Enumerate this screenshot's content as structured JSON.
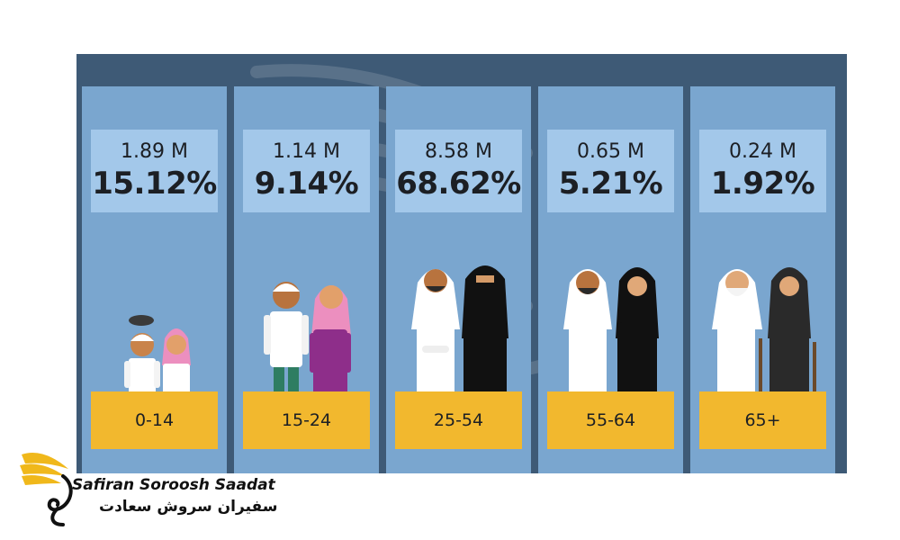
{
  "chart_data": {
    "type": "table",
    "title": "",
    "categories": [
      "0-14",
      "15-24",
      "25-54",
      "55-64",
      "65+"
    ],
    "series": [
      {
        "name": "",
        "unit": "M",
        "values": [
          "1.89 M",
          "1.14 M",
          "8.58 M",
          "0.65 M",
          "0.24 M"
        ]
      },
      {
        "name": "",
        "unit": "%",
        "values": [
          "15.12%",
          "9.14%",
          "68.62%",
          "5.21%",
          "1.92%"
        ]
      }
    ]
  },
  "colors": {
    "panel_bg": "#3e5a76",
    "column_bg": "#7aa6cf",
    "value_box_bg": "#a3c8ea",
    "age_box_bg": "#f2b82e",
    "logo_gold": "#f0b81b"
  },
  "figures": [
    "child-figures-icon",
    "youth-figures-icon",
    "adult-figures-icon",
    "middle-age-figures-icon",
    "elderly-figures-icon"
  ],
  "logo": {
    "name_en": "Safiran Soroosh Saadat",
    "name_fa": "سفیران سروش سعادت",
    "icon": "wing-logo-icon"
  }
}
